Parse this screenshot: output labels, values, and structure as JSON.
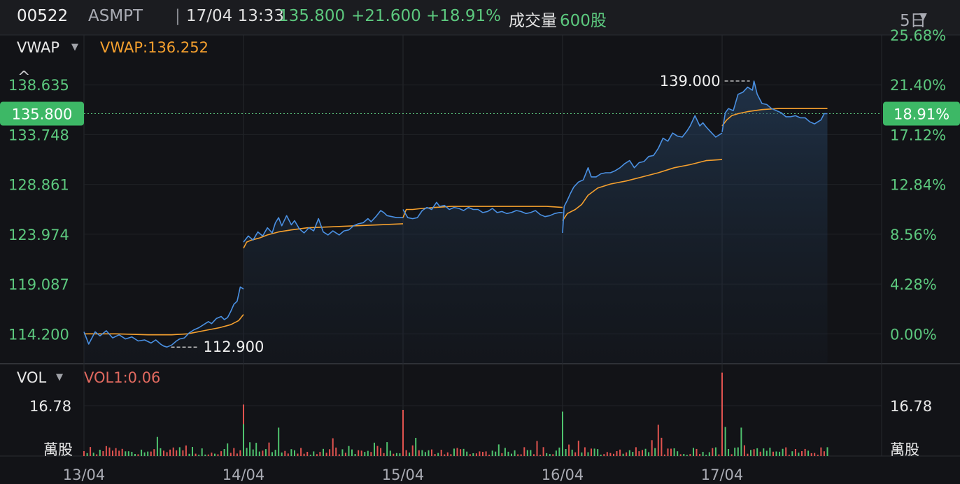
{
  "header": {
    "code": "00522",
    "name": "ASMPT",
    "separator": "|",
    "datetime": "17/04 13:33",
    "price": "135.800",
    "change": "+21.600",
    "change_pct": "+18.91%",
    "volume_label": "成交量",
    "volume_value": "600股",
    "period": "5日",
    "period_caret": "▼"
  },
  "indicators": {
    "main_name": "VWAP",
    "main_caret": "▼",
    "main_value": "VWAP:136.252",
    "collapse_icon": "^",
    "vol_name": "VOL",
    "vol_caret": "▼",
    "vol_value": "VOL1:0.06"
  },
  "colors": {
    "price_line": "#4a90e2",
    "vwap_line": "#f5a02e",
    "up": "#4fc36e",
    "down": "#e0534f",
    "label_green": "#5cc87e"
  },
  "chart_data": {
    "type": "line",
    "x_labels": [
      "13/04",
      "14/04",
      "15/04",
      "16/04",
      "17/04"
    ],
    "y_ticks": [
      "138.635",
      "133.748",
      "128.861",
      "123.974",
      "119.087",
      "114.200"
    ],
    "y_ticks_right": [
      "25.68%",
      "21.40%",
      "17.12%",
      "12.84%",
      "8.56%",
      "4.28%",
      "0.00%"
    ],
    "ylim": [
      111.269,
      143.522
    ],
    "current_price": "135.800",
    "current_pct": "18.91%",
    "max_label": "139.000",
    "min_label": "112.900",
    "vol_tick": "16.78",
    "vol_unit": "萬股",
    "vol_max": 26,
    "series": [
      {
        "name": "Price",
        "days": [
          [
            [
              0,
              114.4
            ],
            [
              0.03,
              113.2
            ],
            [
              0.07,
              114.4
            ],
            [
              0.1,
              114.0
            ],
            [
              0.14,
              114.5
            ],
            [
              0.18,
              113.8
            ],
            [
              0.22,
              114.1
            ],
            [
              0.26,
              113.7
            ],
            [
              0.3,
              113.9
            ],
            [
              0.34,
              113.5
            ],
            [
              0.38,
              113.6
            ],
            [
              0.42,
              113.3
            ],
            [
              0.45,
              113.6
            ],
            [
              0.48,
              113.2
            ],
            [
              0.5,
              113.0
            ],
            [
              0.52,
              112.9
            ],
            [
              0.55,
              113.1
            ],
            [
              0.58,
              113.5
            ],
            [
              0.6,
              113.7
            ],
            [
              0.63,
              113.8
            ],
            [
              0.66,
              114.3
            ],
            [
              0.69,
              114.6
            ],
            [
              0.72,
              114.8
            ],
            [
              0.75,
              115.1
            ],
            [
              0.78,
              115.4
            ],
            [
              0.8,
              115.2
            ],
            [
              0.83,
              115.7
            ],
            [
              0.86,
              115.9
            ],
            [
              0.88,
              115.6
            ],
            [
              0.9,
              115.8
            ],
            [
              0.92,
              116.4
            ],
            [
              0.94,
              117.1
            ],
            [
              0.96,
              117.4
            ],
            [
              0.98,
              118.8
            ],
            [
              1.0,
              118.6
            ]
          ],
          [
            [
              0,
              123.2
            ],
            [
              0.03,
              123.8
            ],
            [
              0.06,
              123.4
            ],
            [
              0.09,
              124.2
            ],
            [
              0.12,
              123.8
            ],
            [
              0.15,
              124.6
            ],
            [
              0.18,
              124.1
            ],
            [
              0.2,
              125.1
            ],
            [
              0.22,
              125.6
            ],
            [
              0.24,
              124.8
            ],
            [
              0.27,
              125.8
            ],
            [
              0.3,
              124.9
            ],
            [
              0.32,
              125.3
            ],
            [
              0.35,
              124.5
            ],
            [
              0.38,
              124.1
            ],
            [
              0.41,
              124.6
            ],
            [
              0.44,
              124.3
            ],
            [
              0.47,
              125.5
            ],
            [
              0.5,
              124.2
            ],
            [
              0.53,
              123.9
            ],
            [
              0.56,
              124.3
            ],
            [
              0.6,
              123.9
            ],
            [
              0.63,
              124.3
            ],
            [
              0.66,
              124.4
            ],
            [
              0.69,
              124.8
            ],
            [
              0.72,
              125.0
            ],
            [
              0.75,
              125.1
            ],
            [
              0.78,
              125.5
            ],
            [
              0.8,
              125.2
            ],
            [
              0.83,
              125.7
            ],
            [
              0.86,
              126.3
            ],
            [
              0.88,
              126.1
            ],
            [
              0.9,
              125.8
            ],
            [
              0.93,
              125.7
            ],
            [
              0.96,
              125.6
            ],
            [
              1.0,
              125.6
            ]
          ],
          [
            [
              0,
              126.4
            ],
            [
              0.03,
              125.6
            ],
            [
              0.06,
              125.5
            ],
            [
              0.09,
              125.6
            ],
            [
              0.12,
              126.3
            ],
            [
              0.15,
              126.6
            ],
            [
              0.18,
              126.4
            ],
            [
              0.21,
              127.1
            ],
            [
              0.23,
              126.7
            ],
            [
              0.26,
              126.8
            ],
            [
              0.29,
              126.4
            ],
            [
              0.32,
              126.6
            ],
            [
              0.35,
              126.5
            ],
            [
              0.38,
              126.3
            ],
            [
              0.41,
              126.6
            ],
            [
              0.44,
              126.4
            ],
            [
              0.47,
              126.4
            ],
            [
              0.5,
              126.1
            ],
            [
              0.53,
              126.2
            ],
            [
              0.56,
              126.5
            ],
            [
              0.59,
              126.1
            ],
            [
              0.62,
              126.2
            ],
            [
              0.65,
              126.0
            ],
            [
              0.68,
              126.1
            ],
            [
              0.71,
              126.3
            ],
            [
              0.74,
              126.2
            ],
            [
              0.77,
              126.0
            ],
            [
              0.8,
              126.1
            ],
            [
              0.83,
              126.3
            ],
            [
              0.86,
              125.9
            ],
            [
              0.89,
              125.7
            ],
            [
              0.92,
              125.8
            ],
            [
              0.95,
              126.0
            ],
            [
              0.98,
              126.1
            ],
            [
              1.0,
              126.1
            ]
          ],
          [
            [
              0,
              124.1
            ],
            [
              0.01,
              126.7
            ],
            [
              0.03,
              127.3
            ],
            [
              0.05,
              128.0
            ],
            [
              0.07,
              128.6
            ],
            [
              0.1,
              129.1
            ],
            [
              0.13,
              129.3
            ],
            [
              0.16,
              130.5
            ],
            [
              0.18,
              129.6
            ],
            [
              0.21,
              129.6
            ],
            [
              0.24,
              129.9
            ],
            [
              0.27,
              130.0
            ],
            [
              0.3,
              130.0
            ],
            [
              0.33,
              130.2
            ],
            [
              0.36,
              130.5
            ],
            [
              0.39,
              130.9
            ],
            [
              0.42,
              131.2
            ],
            [
              0.45,
              130.5
            ],
            [
              0.48,
              131.0
            ],
            [
              0.51,
              131.1
            ],
            [
              0.54,
              131.6
            ],
            [
              0.57,
              131.7
            ],
            [
              0.6,
              132.4
            ],
            [
              0.63,
              133.4
            ],
            [
              0.66,
              133.1
            ],
            [
              0.69,
              133.9
            ],
            [
              0.72,
              133.6
            ],
            [
              0.75,
              133.5
            ],
            [
              0.78,
              134.1
            ],
            [
              0.8,
              134.6
            ],
            [
              0.83,
              135.6
            ],
            [
              0.86,
              134.6
            ],
            [
              0.88,
              134.9
            ],
            [
              0.9,
              134.5
            ],
            [
              0.93,
              134.0
            ],
            [
              0.96,
              133.5
            ],
            [
              1.0,
              133.9
            ]
          ],
          [
            [
              0,
              134.0
            ],
            [
              0.02,
              135.9
            ],
            [
              0.04,
              136.3
            ],
            [
              0.07,
              136.1
            ],
            [
              0.1,
              137.7
            ],
            [
              0.13,
              137.9
            ],
            [
              0.16,
              138.4
            ],
            [
              0.19,
              138.1
            ],
            [
              0.2,
              139.0
            ],
            [
              0.22,
              137.7
            ],
            [
              0.25,
              136.8
            ],
            [
              0.28,
              136.7
            ],
            [
              0.31,
              136.3
            ],
            [
              0.34,
              136.1
            ],
            [
              0.37,
              135.9
            ],
            [
              0.4,
              135.5
            ],
            [
              0.43,
              135.5
            ],
            [
              0.46,
              135.6
            ],
            [
              0.49,
              135.4
            ],
            [
              0.52,
              135.4
            ],
            [
              0.55,
              135.0
            ],
            [
              0.58,
              134.8
            ],
            [
              0.6,
              135.0
            ],
            [
              0.62,
              135.2
            ],
            [
              0.64,
              135.8
            ],
            [
              0.66,
              135.8
            ]
          ]
        ]
      },
      {
        "name": "VWAP",
        "days": [
          [
            [
              0,
              114.2
            ],
            [
              0.2,
              114.2
            ],
            [
              0.4,
              114.1
            ],
            [
              0.55,
              114.1
            ],
            [
              0.65,
              114.2
            ],
            [
              0.75,
              114.5
            ],
            [
              0.85,
              114.8
            ],
            [
              0.92,
              115.1
            ],
            [
              0.97,
              115.5
            ],
            [
              1.0,
              116.1
            ]
          ],
          [
            [
              0,
              122.6
            ],
            [
              0.02,
              123.2
            ],
            [
              0.05,
              123.4
            ],
            [
              0.1,
              123.6
            ],
            [
              0.15,
              123.9
            ],
            [
              0.22,
              124.2
            ],
            [
              0.3,
              124.4
            ],
            [
              0.4,
              124.6
            ],
            [
              0.55,
              124.7
            ],
            [
              0.7,
              124.8
            ],
            [
              0.85,
              124.9
            ],
            [
              1.0,
              125.0
            ]
          ],
          [
            [
              0,
              125.6
            ],
            [
              0.02,
              126.4
            ],
            [
              0.06,
              126.4
            ],
            [
              0.12,
              126.5
            ],
            [
              0.2,
              126.6
            ],
            [
              0.3,
              126.7
            ],
            [
              0.45,
              126.7
            ],
            [
              0.6,
              126.7
            ],
            [
              0.75,
              126.7
            ],
            [
              0.9,
              126.7
            ],
            [
              1.0,
              126.6
            ]
          ],
          [
            [
              0,
              125.3
            ],
            [
              0.03,
              126.0
            ],
            [
              0.08,
              126.4
            ],
            [
              0.12,
              126.9
            ],
            [
              0.16,
              127.8
            ],
            [
              0.22,
              128.5
            ],
            [
              0.3,
              128.9
            ],
            [
              0.4,
              129.2
            ],
            [
              0.5,
              129.6
            ],
            [
              0.6,
              130.0
            ],
            [
              0.7,
              130.5
            ],
            [
              0.8,
              130.8
            ],
            [
              0.9,
              131.2
            ],
            [
              1.0,
              131.3
            ]
          ],
          [
            [
              0,
              134.6
            ],
            [
              0.03,
              135.2
            ],
            [
              0.06,
              135.6
            ],
            [
              0.1,
              135.8
            ],
            [
              0.16,
              136.0
            ],
            [
              0.25,
              136.2
            ],
            [
              0.35,
              136.3
            ],
            [
              0.45,
              136.3
            ],
            [
              0.55,
              136.3
            ],
            [
              0.66,
              136.3
            ]
          ]
        ]
      }
    ],
    "volume_color_pattern": "alternating up/down with spikes at session opens",
    "volume_spikes": [
      {
        "day": 0,
        "pos": 1.0,
        "value": 14.5
      },
      {
        "day": 1,
        "pos": 0.0,
        "value": 9.0
      },
      {
        "day": 1,
        "pos": 0.22,
        "value": 8.0
      },
      {
        "day": 2,
        "pos": 0.0,
        "value": 13.0
      },
      {
        "day": 3,
        "pos": 0.0,
        "value": 12.5
      },
      {
        "day": 3,
        "pos": 0.33,
        "value": 6.0
      },
      {
        "day": 3,
        "pos": 0.45,
        "value": 9.2
      },
      {
        "day": 3,
        "pos": 0.6,
        "value": 8.8
      },
      {
        "day": 4,
        "pos": 0.0,
        "value": 23.5
      },
      {
        "day": 4,
        "pos": 0.02,
        "value": 8.2
      },
      {
        "day": 4,
        "pos": 0.12,
        "value": 8.0
      }
    ]
  }
}
